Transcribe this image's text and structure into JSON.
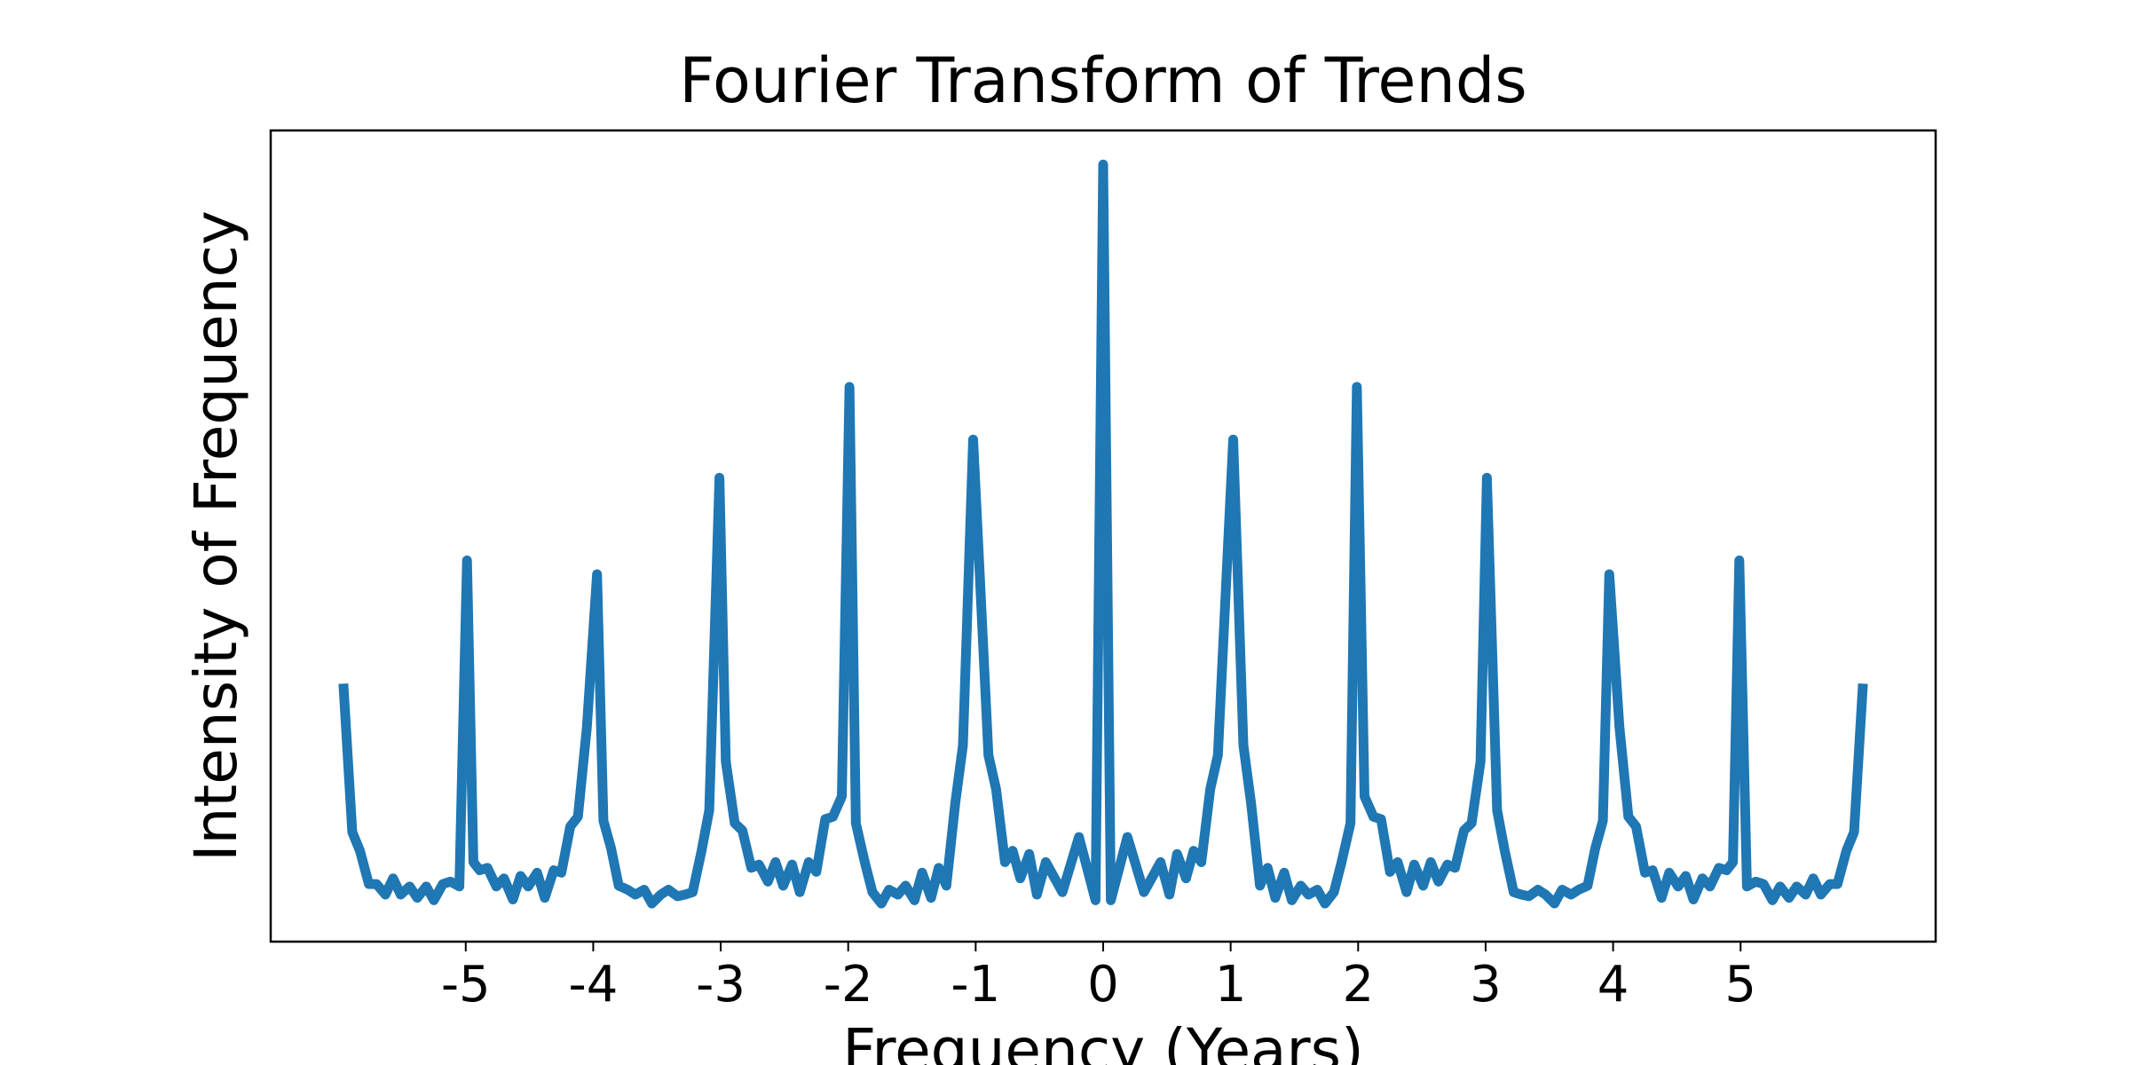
{
  "chart_data": {
    "type": "line",
    "title": "Fourier Transform of Trends",
    "x_label": "Frequency (Years)",
    "y_label": "Intensity of Frequency",
    "xlim": [
      -6.53,
      6.53
    ],
    "xticks": [
      -5,
      -4,
      -3,
      -2,
      -1,
      0,
      1,
      2,
      3,
      4,
      5
    ],
    "ylim": [
      0,
      100
    ],
    "series": [
      {
        "name": "Intensity",
        "color": "#1f77b4",
        "x": [
          -5.96,
          -5.89,
          -5.83,
          -5.76,
          -5.7,
          -5.63,
          -5.57,
          -5.51,
          -5.44,
          -5.38,
          -5.31,
          -5.25,
          -5.18,
          -5.12,
          -5.05,
          -4.99,
          -4.94,
          -4.89,
          -4.83,
          -4.76,
          -4.7,
          -4.63,
          -4.57,
          -4.51,
          -4.44,
          -4.38,
          -4.31,
          -4.25,
          -4.18,
          -4.12,
          -4.05,
          -3.97,
          -3.92,
          -3.86,
          -3.8,
          -3.73,
          -3.67,
          -3.6,
          -3.54,
          -3.47,
          -3.41,
          -3.34,
          -3.28,
          -3.22,
          -3.15,
          -3.09,
          -3.01,
          -2.96,
          -2.89,
          -2.83,
          -2.76,
          -2.7,
          -2.63,
          -2.57,
          -2.51,
          -2.44,
          -2.38,
          -2.31,
          -2.25,
          -2.18,
          -2.12,
          -2.05,
          -1.99,
          -1.94,
          -1.87,
          -1.81,
          -1.74,
          -1.68,
          -1.61,
          -1.55,
          -1.48,
          -1.42,
          -1.35,
          -1.29,
          -1.23,
          -1.16,
          -1.1,
          -1.02,
          -0.97,
          -0.9,
          -0.84,
          -0.77,
          -0.71,
          -0.65,
          -0.58,
          -0.52,
          -0.45,
          -0.32,
          -0.19,
          -0.06,
          0,
          0.06,
          0.19,
          0.32,
          0.45,
          0.52,
          0.58,
          0.65,
          0.71,
          0.77,
          0.84,
          0.9,
          0.97,
          1.02,
          1.1,
          1.16,
          1.23,
          1.29,
          1.35,
          1.42,
          1.48,
          1.55,
          1.61,
          1.68,
          1.74,
          1.81,
          1.87,
          1.94,
          1.99,
          2.05,
          2.12,
          2.18,
          2.25,
          2.31,
          2.38,
          2.44,
          2.51,
          2.57,
          2.63,
          2.7,
          2.76,
          2.83,
          2.89,
          2.96,
          3.01,
          3.09,
          3.15,
          3.22,
          3.28,
          3.34,
          3.41,
          3.47,
          3.54,
          3.6,
          3.67,
          3.73,
          3.8,
          3.86,
          3.92,
          3.97,
          4.05,
          4.12,
          4.18,
          4.25,
          4.31,
          4.38,
          4.44,
          4.51,
          4.57,
          4.63,
          4.7,
          4.76,
          4.83,
          4.89,
          4.94,
          4.99,
          5.05,
          5.12,
          5.18,
          5.25,
          5.31,
          5.38,
          5.44,
          5.51,
          5.57,
          5.63,
          5.7,
          5.76,
          5.83,
          5.89,
          5.96
        ],
        "values": [
          31.8,
          13.5,
          11.2,
          7.1,
          7.1,
          5.8,
          7.8,
          5.8,
          6.8,
          5.4,
          6.8,
          5.1,
          7.1,
          7.4,
          6.8,
          47.0,
          9.8,
          8.8,
          9.1,
          6.8,
          7.8,
          5.2,
          8.1,
          6.8,
          8.5,
          5.4,
          8.8,
          8.5,
          14.2,
          15.4,
          26.4,
          45.3,
          14.9,
          11.5,
          6.9,
          6.4,
          5.8,
          6.4,
          4.7,
          5.8,
          6.4,
          5.6,
          5.8,
          6.1,
          11.2,
          16.2,
          57.2,
          22.2,
          14.6,
          13.7,
          9.1,
          9.5,
          7.4,
          9.8,
          6.9,
          9.5,
          6.1,
          9.8,
          8.6,
          15.1,
          15.4,
          17.9,
          68.4,
          14.6,
          9.8,
          6.1,
          4.7,
          6.4,
          5.8,
          6.9,
          5.1,
          8.5,
          5.4,
          9.1,
          6.9,
          17.1,
          24.2,
          61.9,
          45.9,
          23.0,
          18.8,
          9.8,
          11.2,
          7.8,
          10.8,
          5.8,
          9.8,
          6.1,
          12.9,
          5.1,
          95.8,
          5.1,
          12.9,
          6.1,
          9.8,
          5.8,
          10.8,
          7.8,
          11.2,
          9.8,
          18.8,
          23.0,
          45.9,
          61.9,
          24.2,
          17.1,
          6.9,
          9.1,
          5.4,
          8.5,
          5.1,
          6.9,
          5.8,
          6.4,
          4.7,
          6.1,
          9.8,
          14.6,
          68.4,
          17.9,
          15.4,
          15.1,
          8.6,
          9.8,
          6.1,
          9.5,
          6.9,
          9.8,
          7.4,
          9.5,
          9.1,
          13.7,
          14.6,
          22.2,
          57.2,
          16.2,
          11.2,
          6.1,
          5.8,
          5.6,
          6.4,
          5.8,
          4.7,
          6.4,
          5.8,
          6.4,
          6.9,
          11.5,
          14.9,
          45.3,
          26.4,
          15.4,
          14.2,
          8.5,
          8.8,
          5.4,
          8.5,
          6.8,
          8.1,
          5.2,
          7.8,
          6.8,
          9.1,
          8.8,
          9.8,
          47.0,
          6.8,
          7.4,
          7.1,
          5.1,
          6.8,
          5.4,
          6.8,
          5.8,
          7.8,
          5.8,
          7.1,
          7.1,
          11.2,
          13.5,
          31.8
        ]
      }
    ]
  }
}
